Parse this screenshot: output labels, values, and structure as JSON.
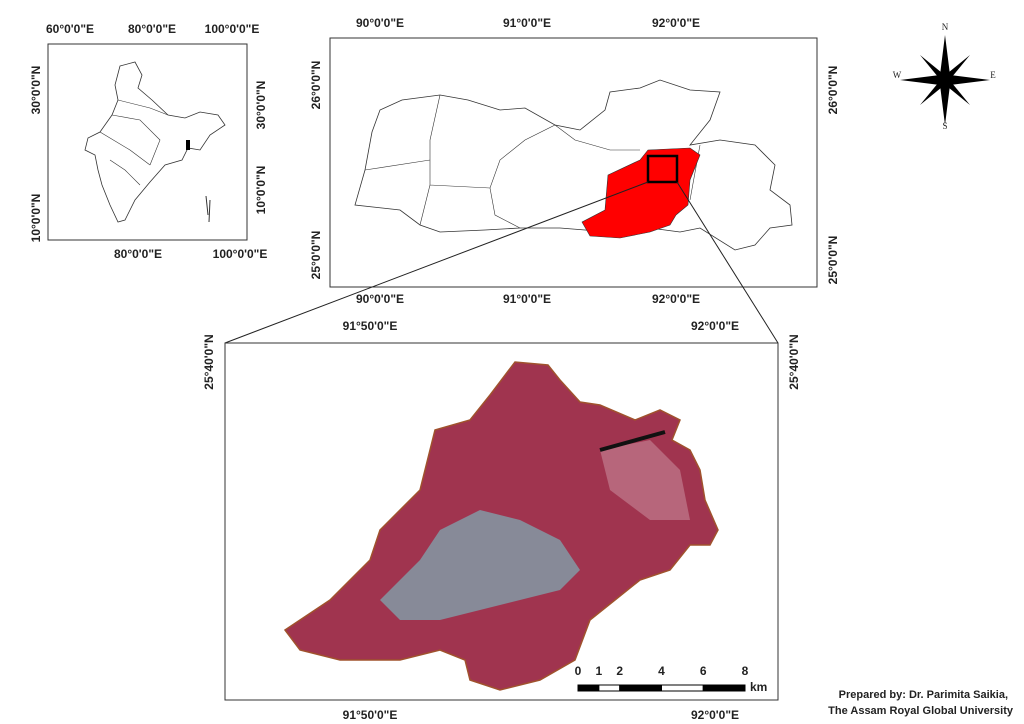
{
  "frames": {
    "india": {
      "top": [
        "60°0'0\"E",
        "80°0'0\"E",
        "100°0'0\"E"
      ],
      "bottom": [
        "80°0'0\"E",
        "100°0'0\"E"
      ],
      "left": [
        "30°0'0\"N",
        "10°0'0\"N"
      ],
      "right": [
        "30°0'0\"N",
        "10°0'0\"N"
      ]
    },
    "meghalaya": {
      "top": [
        "90°0'0\"E",
        "91°0'0\"E",
        "92°0'0\"E"
      ],
      "bottom": [
        "90°0'0\"E",
        "91°0'0\"E",
        "92°0'0\"E"
      ],
      "left": [
        "26°0'0\"N",
        "25°0'0\"N"
      ],
      "right": [
        "26°0'0\"N",
        "25°0'0\"N"
      ]
    },
    "detail": {
      "top": [
        "91°50'0\"E",
        "92°0'0\"E"
      ],
      "bottom": [
        "91°50'0\"E",
        "92°0'0\"E"
      ],
      "left": [
        "25°40'0\"N"
      ],
      "right": [
        "25°40'0\"N"
      ]
    }
  },
  "compass": {
    "n": "N",
    "e": "E",
    "s": "S",
    "w": "W"
  },
  "scale_bar": {
    "ticks": [
      0,
      1,
      2,
      4,
      6,
      8
    ],
    "unit": "km"
  },
  "credit": {
    "line1": "Prepared by: Dr. Parimita Saikia,",
    "line2": "The Assam Royal Global University"
  }
}
